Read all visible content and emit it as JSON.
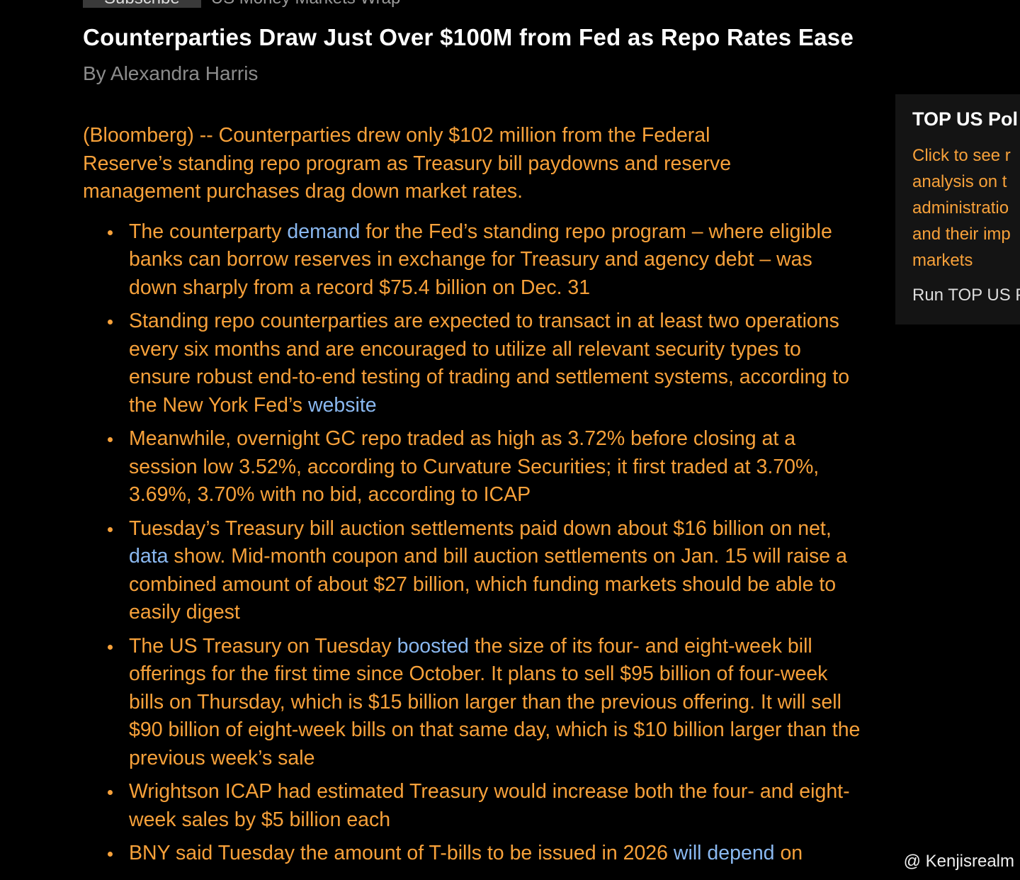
{
  "header": {
    "tag": "Subscribe",
    "section": "US Money Markets Wrap",
    "title": "Counterparties Draw Just Over $100M from Fed as Repo Rates Ease",
    "byline": "By Alexandra Harris"
  },
  "body": {
    "lead": "(Bloomberg) -- Counterparties drew only $102 million from the Federal Reserve’s standing repo program as Treasury bill paydowns and reserve management purchases drag down market rates.",
    "bullets": [
      [
        {
          "text": "The counterparty "
        },
        {
          "link": "demand"
        },
        {
          "text": " for the Fed’s standing repo program – where eligible banks can borrow reserves in exchange for Treasury and agency debt – was down sharply from a record $75.4 billion on Dec. 31"
        }
      ],
      [
        {
          "text": "Standing repo counterparties are expected to transact in at least two operations every six months and are encouraged to utilize all relevant security types to ensure robust end-to-end testing of trading and settlement systems, according to the New York Fed’s "
        },
        {
          "link": "website"
        }
      ],
      [
        {
          "text": "Meanwhile, overnight GC repo traded as high as 3.72% before closing at a session low 3.52%, according to Curvature Securities; it first traded at 3.70%, 3.69%, 3.70% with no bid, according to ICAP"
        }
      ],
      [
        {
          "text": "Tuesday’s Treasury bill auction settlements paid down about $16 billion on net, "
        },
        {
          "link": "data"
        },
        {
          "text": " show. Mid-month coupon and bill auction settlements on Jan. 15 will raise a combined amount of about $27 billion, which funding markets should be able to easily digest"
        }
      ],
      [
        {
          "text": "The US Treasury on Tuesday "
        },
        {
          "link": "boosted"
        },
        {
          "text": " the size of its four- and eight-week bill offerings for the first time since October. It plans to sell $95 billion of four-week bills on Thursday, which is $15 billion larger than the previous offering. It will sell $90 billion of eight-week bills on that same day, which is $10 billion larger than the previous week’s sale"
        }
      ],
      [
        {
          "text": "Wrightson ICAP had estimated Treasury would increase both the four- and eight-week sales by $5 billion each"
        }
      ],
      [
        {
          "text": "BNY said Tuesday the amount of T-bills to be issued in 2026 "
        },
        {
          "link": "will depend"
        },
        {
          "text": " on"
        }
      ]
    ]
  },
  "sidebar": {
    "title": "TOP US Pol",
    "lines": [
      "Click to see r",
      "analysis on t",
      "administratio",
      "and their imp",
      "markets"
    ],
    "run": "Run TOP US P"
  },
  "watermark": "@ Kenjisrealm"
}
